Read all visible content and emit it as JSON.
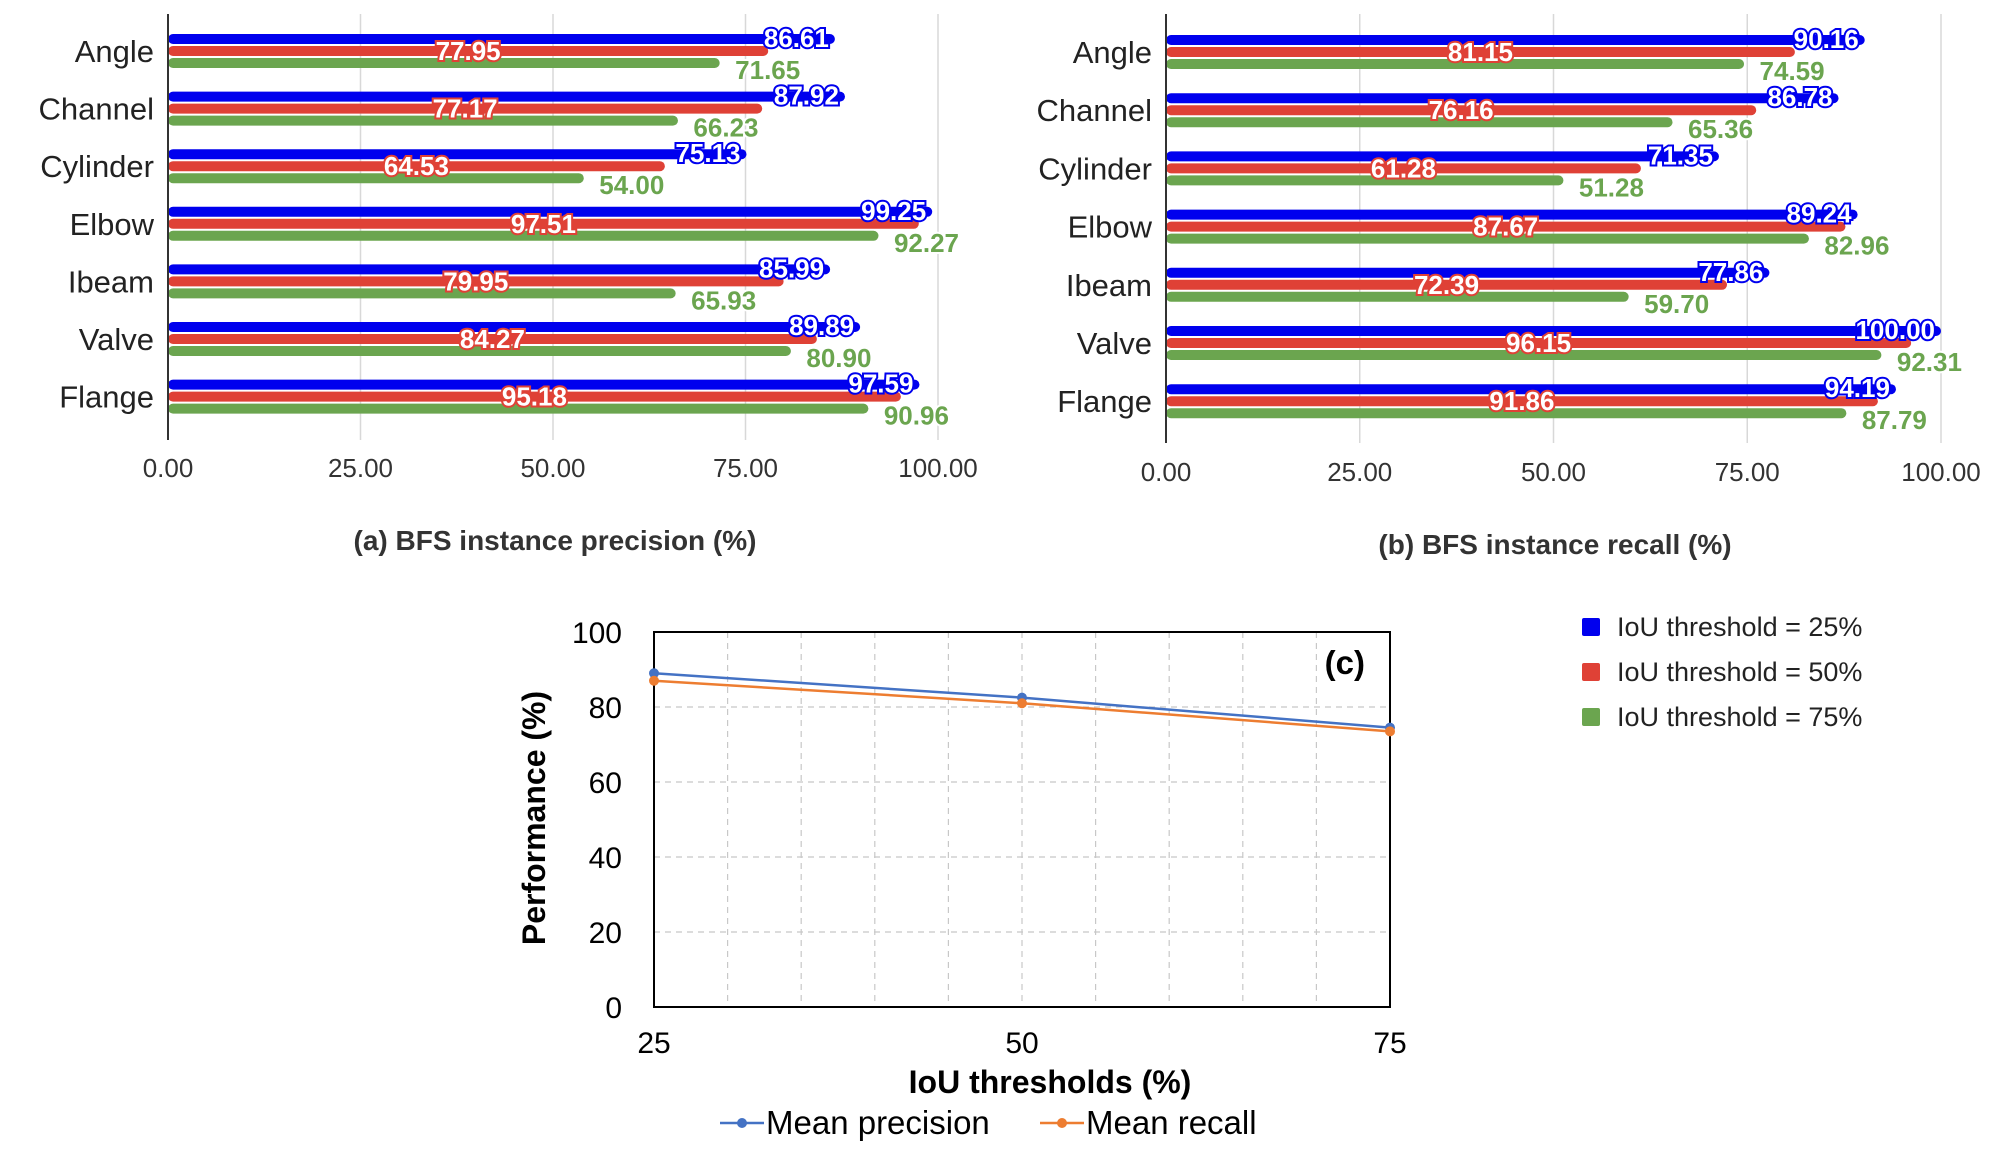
{
  "legend": {
    "entries": [
      {
        "label": "IoU threshold = 25%",
        "color": "#0000ee"
      },
      {
        "label": "IoU threshold = 50%",
        "color": "#df4136"
      },
      {
        "label": "IoU threshold = 75%",
        "color": "#6ba54f"
      }
    ]
  },
  "chart_data": [
    {
      "type": "bar",
      "orientation": "horizontal",
      "title": "(a) BFS instance precision (%)",
      "categories": [
        "Angle",
        "Channel",
        "Cylinder",
        "Elbow",
        "Ibeam",
        "Valve",
        "Flange"
      ],
      "series": [
        {
          "name": "IoU threshold = 25%",
          "values": [
            86.61,
            87.92,
            75.13,
            99.25,
            85.99,
            89.89,
            97.59
          ],
          "labels": [
            "86.61",
            "87.92",
            "75.13",
            "99.25",
            "85.99",
            "89.89",
            "97.59"
          ]
        },
        {
          "name": "IoU threshold = 50%",
          "values": [
            77.95,
            77.17,
            64.53,
            97.51,
            79.95,
            84.27,
            95.18
          ],
          "labels": [
            "77.95",
            "77.17",
            "64.53",
            "97.51",
            "79.95",
            "84.27",
            "95.18"
          ]
        },
        {
          "name": "IoU threshold = 75%",
          "values": [
            71.65,
            66.23,
            54.0,
            92.27,
            65.93,
            80.9,
            90.96
          ],
          "labels": [
            "71.65",
            "66.23",
            "54.00",
            "92.27",
            "65.93",
            "80.90",
            "90.96"
          ]
        }
      ],
      "xlim": [
        0,
        100
      ],
      "xticks": [
        "0.00",
        "25.00",
        "50.00",
        "75.00",
        "100.00"
      ],
      "grid": true
    },
    {
      "type": "bar",
      "orientation": "horizontal",
      "title": "(b) BFS instance recall (%)",
      "categories": [
        "Angle",
        "Channel",
        "Cylinder",
        "Elbow",
        "Ibeam",
        "Valve",
        "Flange"
      ],
      "series": [
        {
          "name": "IoU threshold = 25%",
          "values": [
            90.16,
            86.78,
            71.35,
            89.24,
            77.86,
            100.0,
            94.19
          ],
          "labels": [
            "90.16",
            "86.78",
            "71.35",
            "89.24",
            "77.86",
            "100.00",
            "94.19"
          ]
        },
        {
          "name": "IoU threshold = 50%",
          "values": [
            81.15,
            76.16,
            61.28,
            87.67,
            72.39,
            96.15,
            91.86
          ],
          "labels": [
            "81.15",
            "76.16",
            "61.28",
            "87.67",
            "72.39",
            "96.15",
            "91.86"
          ]
        },
        {
          "name": "IoU threshold = 75%",
          "values": [
            74.59,
            65.36,
            51.28,
            82.96,
            59.7,
            92.31,
            87.79
          ],
          "labels": [
            "74.59",
            "65.36",
            "51.28",
            "82.96",
            "59.70",
            "92.31",
            "87.79"
          ]
        }
      ],
      "xlim": [
        0,
        100
      ],
      "xticks": [
        "0.00",
        "25.00",
        "50.00",
        "75.00",
        "100.00"
      ],
      "grid": true
    },
    {
      "type": "line",
      "annotation": "(c)",
      "x": [
        25,
        50,
        75
      ],
      "series": [
        {
          "name": "Mean precision",
          "values": [
            89,
            82.5,
            74.5
          ],
          "color": "#4472c4"
        },
        {
          "name": "Mean recall",
          "values": [
            87,
            81,
            73.5
          ],
          "color": "#ed7d31"
        }
      ],
      "xlabel": "IoU thresholds (%)",
      "ylabel": "Performance (%)",
      "xlim": [
        25,
        75
      ],
      "ylim": [
        0,
        100
      ],
      "xticks": [
        "25",
        "50",
        "75"
      ],
      "yticks": [
        "0",
        "20",
        "40",
        "60",
        "80",
        "100"
      ],
      "grid": true,
      "legend": "bottom"
    }
  ]
}
